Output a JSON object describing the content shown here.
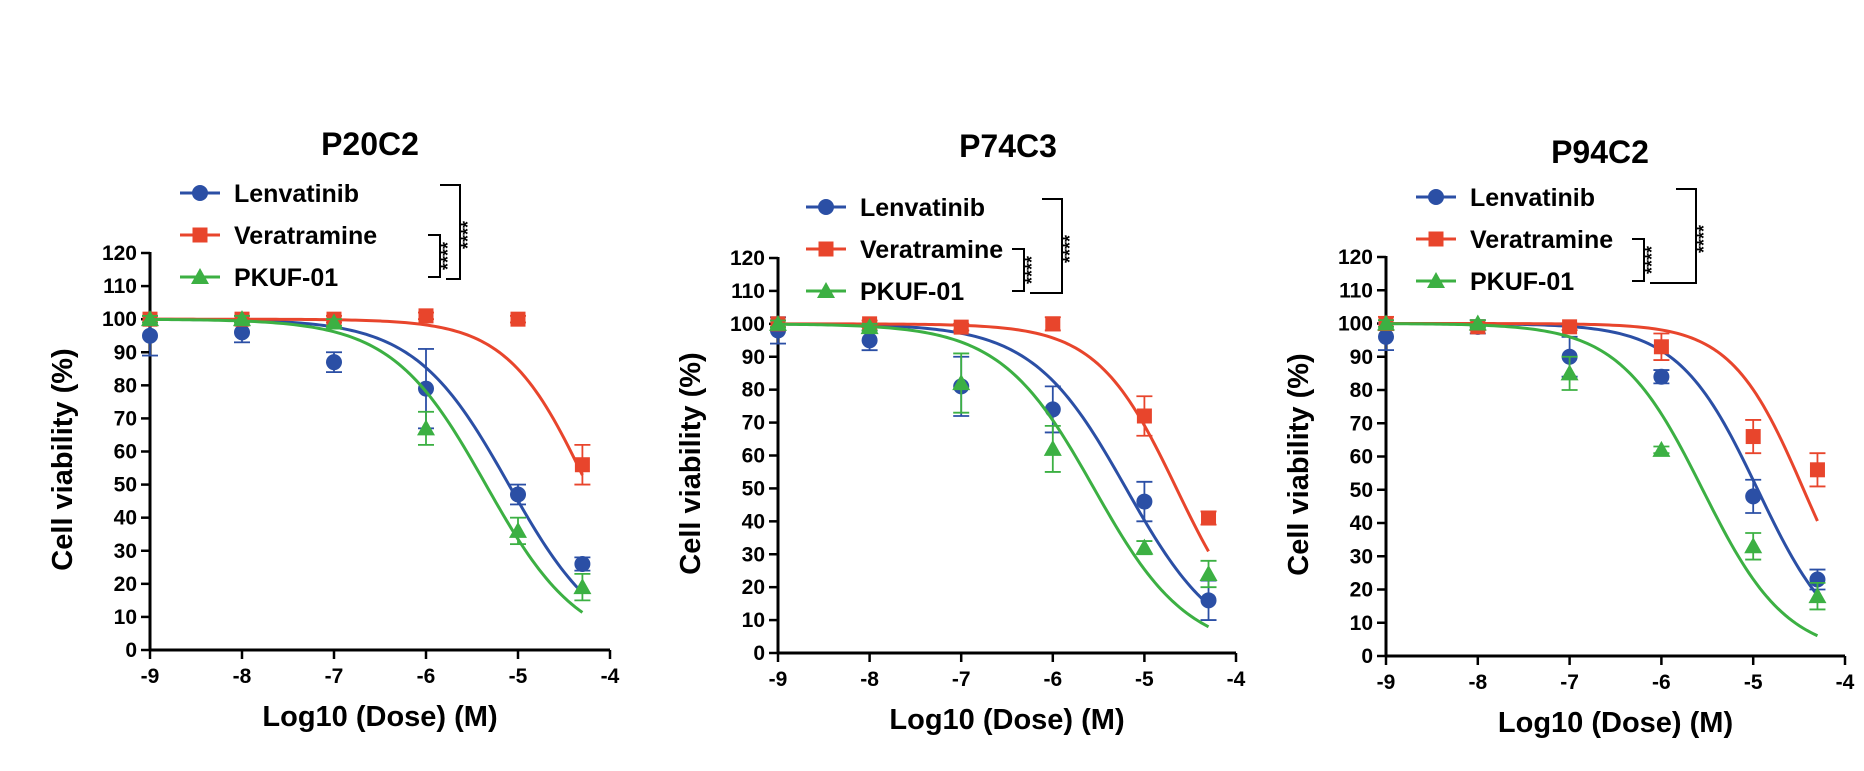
{
  "chart_data": [
    {
      "type": "line",
      "title": "P20C2",
      "xlabel": "Log10 (Dose) (M)",
      "ylabel": "Cell viability (%)",
      "xlim": [
        -9,
        -4
      ],
      "ylim": [
        0,
        120
      ],
      "xticks": [
        "-9",
        "-8",
        "-7",
        "-6",
        "-5",
        "-4"
      ],
      "yticks": [
        "0",
        "10",
        "20",
        "30",
        "40",
        "50",
        "60",
        "70",
        "80",
        "90",
        "100",
        "110",
        "120"
      ],
      "legend_position": "top-left",
      "series": [
        {
          "name": "Lenvatinib",
          "color": "#2b4fa5",
          "marker": "circle",
          "x": [
            -9,
            -8,
            -7,
            -6,
            -5,
            -4.3
          ],
          "y": [
            95,
            96,
            87,
            79,
            47,
            26
          ],
          "err": [
            6,
            3,
            3,
            12,
            3,
            2
          ],
          "fit": {
            "top": 100,
            "bottom": 0,
            "logIC50": -5.1,
            "hill": 0.85
          }
        },
        {
          "name": "Veratramine",
          "color": "#e8452c",
          "marker": "square",
          "x": [
            -9,
            -8,
            -7,
            -6,
            -5,
            -4.3
          ],
          "y": [
            100,
            100,
            100,
            101,
            100,
            56
          ],
          "err": [
            1,
            1,
            1,
            1,
            1,
            6
          ],
          "fit": {
            "top": 100,
            "bottom": 0,
            "logIC50": -4.25,
            "hill": 1.0
          }
        },
        {
          "name": "PKUF-01",
          "color": "#3cb043",
          "marker": "triangle",
          "x": [
            -9,
            -8,
            -7,
            -6,
            -5,
            -4.3
          ],
          "y": [
            100,
            100,
            99,
            67,
            36,
            19
          ],
          "err": [
            1,
            1,
            1,
            5,
            4,
            4
          ],
          "fit": {
            "top": 100,
            "bottom": 0,
            "logIC50": -5.35,
            "hill": 0.85
          }
        }
      ],
      "significance": [
        "****",
        "****"
      ]
    },
    {
      "type": "line",
      "title": "P74C3",
      "xlabel": "Log10 (Dose) (M)",
      "ylabel": "Cell viability (%)",
      "xlim": [
        -9,
        -4
      ],
      "ylim": [
        0,
        120
      ],
      "xticks": [
        "-9",
        "-8",
        "-7",
        "-6",
        "-5",
        "-4"
      ],
      "yticks": [
        "0",
        "10",
        "20",
        "30",
        "40",
        "50",
        "60",
        "70",
        "80",
        "90",
        "100",
        "110",
        "120"
      ],
      "legend_position": "top-left",
      "series": [
        {
          "name": "Lenvatinib",
          "color": "#2b4fa5",
          "marker": "circle",
          "x": [
            -9,
            -8,
            -7,
            -6,
            -5,
            -4.3
          ],
          "y": [
            98,
            95,
            81,
            74,
            46,
            16
          ],
          "err": [
            4,
            3,
            9,
            7,
            6,
            6
          ],
          "fit": {
            "top": 100,
            "bottom": 0,
            "logIC50": -5.2,
            "hill": 0.85
          }
        },
        {
          "name": "Veratramine",
          "color": "#e8452c",
          "marker": "square",
          "x": [
            -9,
            -8,
            -7,
            -6,
            -5,
            -4.3
          ],
          "y": [
            100,
            100,
            99,
            100,
            72,
            41
          ],
          "err": [
            1,
            1,
            1,
            2,
            6,
            2
          ],
          "fit": {
            "top": 100,
            "bottom": 0,
            "logIC50": -4.65,
            "hill": 1.0
          }
        },
        {
          "name": "PKUF-01",
          "color": "#3cb043",
          "marker": "triangle",
          "x": [
            -9,
            -8,
            -7,
            -6,
            -5,
            -4.3
          ],
          "y": [
            100,
            99,
            82,
            62,
            32,
            24
          ],
          "err": [
            1,
            1,
            9,
            7,
            2,
            4
          ],
          "fit": {
            "top": 100,
            "bottom": 0,
            "logIC50": -5.55,
            "hill": 0.85
          }
        }
      ],
      "significance": [
        "****",
        "****"
      ]
    },
    {
      "type": "line",
      "title": "P94C2",
      "xlabel": "Log10 (Dose) (M)",
      "ylabel": "Cell viability (%)",
      "xlim": [
        -9,
        -4
      ],
      "ylim": [
        0,
        120
      ],
      "xticks": [
        "-9",
        "-8",
        "-7",
        "-6",
        "-5",
        "-4"
      ],
      "yticks": [
        "0",
        "10",
        "20",
        "30",
        "40",
        "50",
        "60",
        "70",
        "80",
        "90",
        "100",
        "110",
        "120"
      ],
      "legend_position": "top-left",
      "series": [
        {
          "name": "Lenvatinib",
          "color": "#2b4fa5",
          "marker": "circle",
          "x": [
            -9,
            -8,
            -7,
            -6,
            -5,
            -4.3
          ],
          "y": [
            96,
            99,
            90,
            84,
            48,
            23
          ],
          "err": [
            4,
            2,
            6,
            2,
            5,
            3
          ],
          "fit": {
            "top": 100,
            "bottom": 0,
            "logIC50": -4.95,
            "hill": 1.0
          }
        },
        {
          "name": "Veratramine",
          "color": "#e8452c",
          "marker": "square",
          "x": [
            -9,
            -8,
            -7,
            -6,
            -5,
            -4.3
          ],
          "y": [
            100,
            99,
            99,
            93,
            66,
            56
          ],
          "err": [
            2,
            1,
            1,
            4,
            5,
            5
          ],
          "fit": {
            "top": 100,
            "bottom": 0,
            "logIC50": -4.45,
            "hill": 1.1
          }
        },
        {
          "name": "PKUF-01",
          "color": "#3cb043",
          "marker": "triangle",
          "x": [
            -9,
            -8,
            -7,
            -6,
            -5,
            -4.3
          ],
          "y": [
            100,
            100,
            85,
            62,
            33,
            18
          ],
          "err": [
            1,
            1,
            5,
            1,
            4,
            4
          ],
          "fit": {
            "top": 100,
            "bottom": 0,
            "logIC50": -5.55,
            "hill": 0.95
          }
        }
      ],
      "significance": [
        "****",
        "****"
      ]
    }
  ]
}
